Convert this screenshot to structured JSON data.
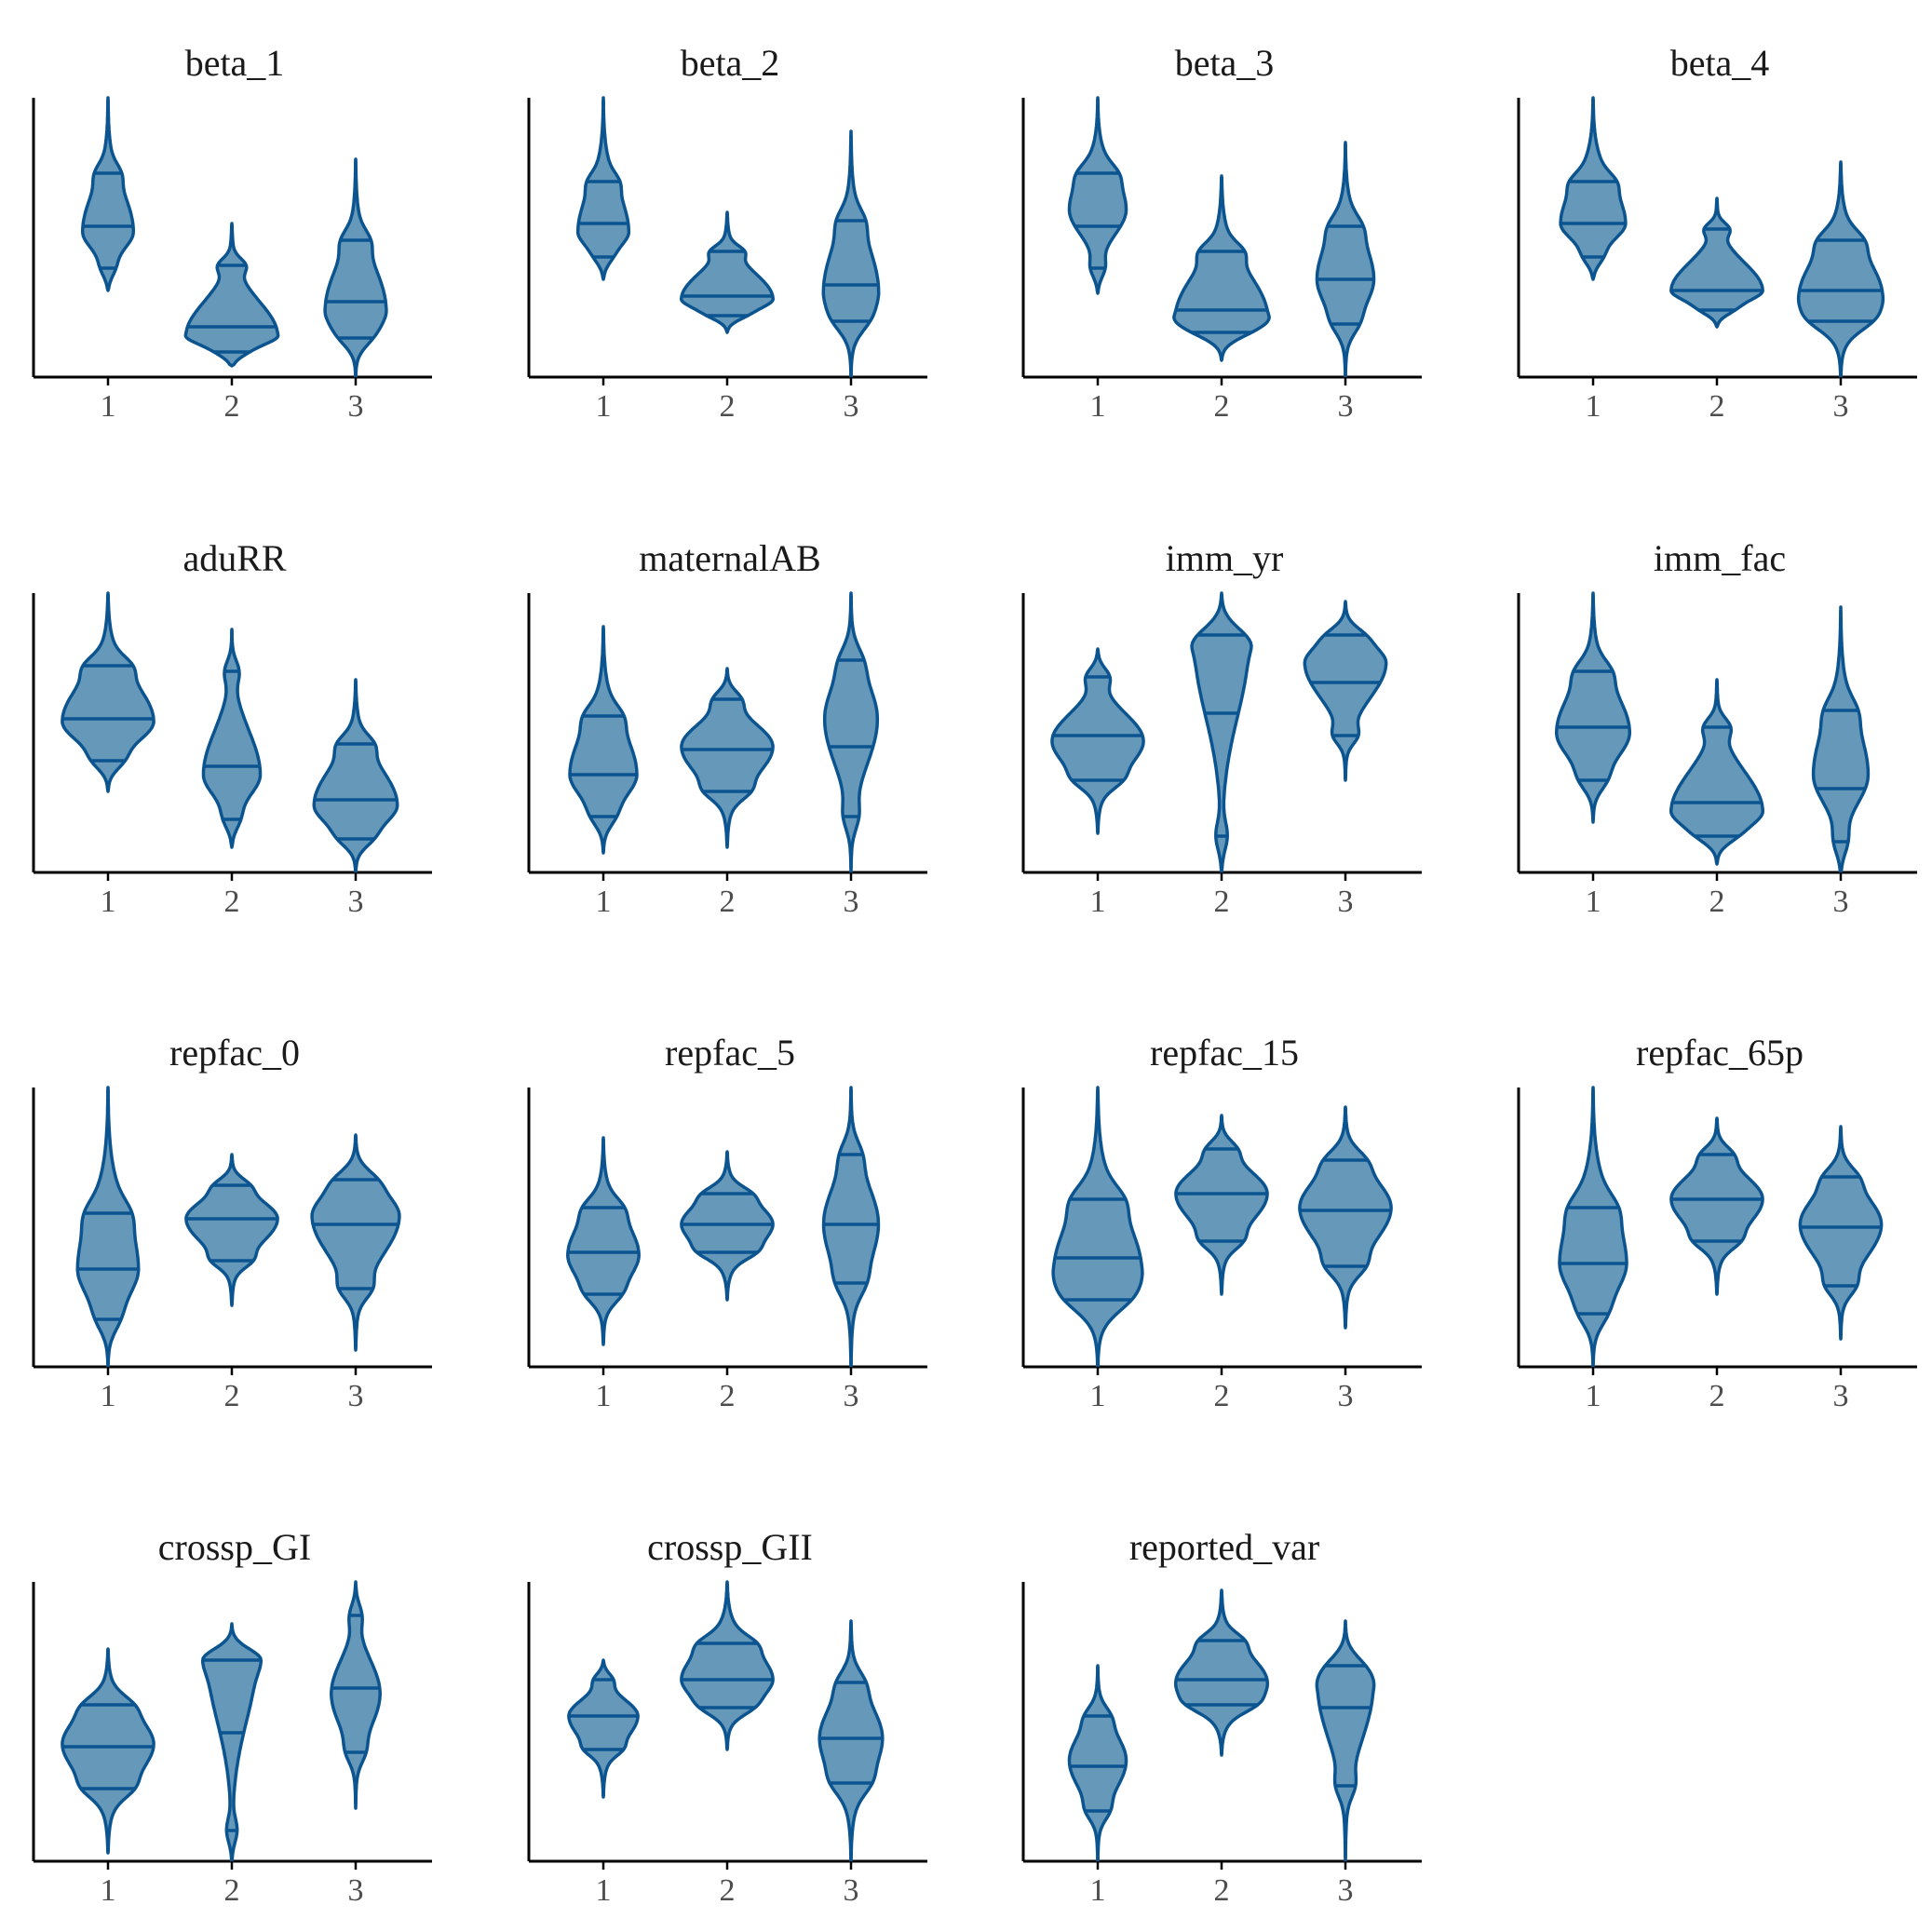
{
  "chart_data": {
    "type": "violin",
    "title": "",
    "xlabel": "",
    "ylabel": "",
    "x_categories": [
      "1",
      "2",
      "3"
    ],
    "y_ticks_shown": false,
    "grid": false,
    "legend": "none",
    "colors": {
      "fill": "#6699b9",
      "outline": "#0b5490",
      "axis": "#000000",
      "tick_text": "#4d4d4d",
      "title_text": "#1a1a1a"
    },
    "quantiles_drawn": [
      0.25,
      0.5,
      0.75
    ],
    "note_on_values": "Unlabeled y axis; all values are relative heights within each panel (0 = bottom axis, 1 = top of panel).",
    "panels": [
      {
        "title": "beta_1",
        "violins": [
          {
            "x": "1",
            "min": 0.31,
            "q1": 0.39,
            "median": 0.54,
            "q3": 0.73,
            "max": 1.0,
            "mode": 0.52,
            "max_half_width": 0.25
          },
          {
            "x": "2",
            "min": 0.04,
            "q1": 0.09,
            "median": 0.18,
            "q3": 0.4,
            "max": 0.55,
            "mode": 0.15,
            "max_half_width": 0.45
          },
          {
            "x": "3",
            "min": 0.0,
            "q1": 0.14,
            "median": 0.27,
            "q3": 0.49,
            "max": 0.78,
            "mode": 0.24,
            "max_half_width": 0.3
          }
        ]
      },
      {
        "title": "beta_2",
        "violins": [
          {
            "x": "1",
            "min": 0.35,
            "q1": 0.43,
            "median": 0.55,
            "q3": 0.7,
            "max": 1.0,
            "mode": 0.52,
            "max_half_width": 0.25
          },
          {
            "x": "2",
            "min": 0.16,
            "q1": 0.22,
            "median": 0.29,
            "q3": 0.45,
            "max": 0.59,
            "mode": 0.28,
            "max_half_width": 0.45
          },
          {
            "x": "3",
            "min": 0.0,
            "q1": 0.2,
            "median": 0.33,
            "q3": 0.56,
            "max": 0.88,
            "mode": 0.31,
            "max_half_width": 0.27
          }
        ]
      },
      {
        "title": "beta_3",
        "violins": [
          {
            "x": "1",
            "min": 0.3,
            "q1": 0.39,
            "median": 0.54,
            "q3": 0.73,
            "max": 1.0,
            "mode": 0.6,
            "max_half_width": 0.28
          },
          {
            "x": "2",
            "min": 0.06,
            "q1": 0.16,
            "median": 0.24,
            "q3": 0.45,
            "max": 0.72,
            "mode": 0.22,
            "max_half_width": 0.45
          },
          {
            "x": "3",
            "min": 0.0,
            "q1": 0.19,
            "median": 0.35,
            "q3": 0.54,
            "max": 0.84,
            "mode": 0.35,
            "max_half_width": 0.28
          }
        ]
      },
      {
        "title": "beta_4",
        "violins": [
          {
            "x": "1",
            "min": 0.35,
            "q1": 0.43,
            "median": 0.55,
            "q3": 0.7,
            "max": 1.0,
            "mode": 0.55,
            "max_half_width": 0.32
          },
          {
            "x": "2",
            "min": 0.18,
            "q1": 0.24,
            "median": 0.31,
            "q3": 0.53,
            "max": 0.64,
            "mode": 0.31,
            "max_half_width": 0.45
          },
          {
            "x": "3",
            "min": 0.0,
            "q1": 0.2,
            "median": 0.31,
            "q3": 0.49,
            "max": 0.77,
            "mode": 0.29,
            "max_half_width": 0.41
          }
        ]
      },
      {
        "title": "aduRR",
        "violins": [
          {
            "x": "1",
            "min": 0.29,
            "q1": 0.4,
            "median": 0.55,
            "q3": 0.74,
            "max": 1.0,
            "mode": 0.54,
            "max_half_width": 0.45
          },
          {
            "x": "2",
            "min": 0.09,
            "q1": 0.19,
            "median": 0.38,
            "q3": 0.72,
            "max": 0.87,
            "mode": 0.35,
            "max_half_width": 0.28
          },
          {
            "x": "3",
            "min": 0.0,
            "q1": 0.12,
            "median": 0.26,
            "q3": 0.46,
            "max": 0.69,
            "mode": 0.24,
            "max_half_width": 0.41
          }
        ]
      },
      {
        "title": "maternalAB",
        "violins": [
          {
            "x": "1",
            "min": 0.07,
            "q1": 0.2,
            "median": 0.35,
            "q3": 0.56,
            "max": 0.88,
            "mode": 0.35,
            "max_half_width": 0.33
          },
          {
            "x": "2",
            "min": 0.09,
            "q1": 0.29,
            "median": 0.44,
            "q3": 0.62,
            "max": 0.73,
            "mode": 0.45,
            "max_half_width": 0.45
          },
          {
            "x": "3",
            "min": 0.0,
            "q1": 0.2,
            "median": 0.45,
            "q3": 0.76,
            "max": 1.0,
            "mode": 0.55,
            "max_half_width": 0.26
          }
        ]
      },
      {
        "title": "imm_yr",
        "violins": [
          {
            "x": "1",
            "min": 0.14,
            "q1": 0.33,
            "median": 0.49,
            "q3": 0.7,
            "max": 0.8,
            "mode": 0.47,
            "max_half_width": 0.45
          },
          {
            "x": "2",
            "min": 0.0,
            "q1": 0.13,
            "median": 0.57,
            "q3": 0.85,
            "max": 1.0,
            "mode": 0.8,
            "max_half_width": 0.26
          },
          {
            "x": "3",
            "min": 0.33,
            "q1": 0.49,
            "median": 0.68,
            "q3": 0.85,
            "max": 0.97,
            "mode": 0.75,
            "max_half_width": 0.4
          }
        ]
      },
      {
        "title": "imm_fac",
        "violins": [
          {
            "x": "1",
            "min": 0.18,
            "q1": 0.33,
            "median": 0.52,
            "q3": 0.72,
            "max": 1.0,
            "mode": 0.5,
            "max_half_width": 0.36
          },
          {
            "x": "2",
            "min": 0.03,
            "q1": 0.13,
            "median": 0.25,
            "q3": 0.52,
            "max": 0.69,
            "mode": 0.22,
            "max_half_width": 0.45
          },
          {
            "x": "3",
            "min": 0.0,
            "q1": 0.11,
            "median": 0.3,
            "q3": 0.58,
            "max": 0.95,
            "mode": 0.35,
            "max_half_width": 0.27
          }
        ]
      },
      {
        "title": "repfac_0",
        "violins": [
          {
            "x": "1",
            "min": 0.0,
            "q1": 0.17,
            "median": 0.35,
            "q3": 0.55,
            "max": 1.0,
            "mode": 0.35,
            "max_half_width": 0.3
          },
          {
            "x": "2",
            "min": 0.22,
            "q1": 0.38,
            "median": 0.53,
            "q3": 0.65,
            "max": 0.76,
            "mode": 0.53,
            "max_half_width": 0.45
          },
          {
            "x": "3",
            "min": 0.06,
            "q1": 0.28,
            "median": 0.51,
            "q3": 0.67,
            "max": 0.83,
            "mode": 0.54,
            "max_half_width": 0.43
          }
        ]
      },
      {
        "title": "repfac_5",
        "violins": [
          {
            "x": "1",
            "min": 0.08,
            "q1": 0.26,
            "median": 0.41,
            "q3": 0.57,
            "max": 0.82,
            "mode": 0.4,
            "max_half_width": 0.35
          },
          {
            "x": "2",
            "min": 0.24,
            "q1": 0.41,
            "median": 0.51,
            "q3": 0.62,
            "max": 0.77,
            "mode": 0.51,
            "max_half_width": 0.45
          },
          {
            "x": "3",
            "min": 0.0,
            "q1": 0.3,
            "median": 0.51,
            "q3": 0.76,
            "max": 1.0,
            "mode": 0.51,
            "max_half_width": 0.27
          }
        ]
      },
      {
        "title": "repfac_15",
        "violins": [
          {
            "x": "1",
            "min": 0.0,
            "q1": 0.24,
            "median": 0.39,
            "q3": 0.6,
            "max": 1.0,
            "mode": 0.35,
            "max_half_width": 0.43
          },
          {
            "x": "2",
            "min": 0.26,
            "q1": 0.45,
            "median": 0.62,
            "q3": 0.78,
            "max": 0.9,
            "mode": 0.62,
            "max_half_width": 0.45
          },
          {
            "x": "3",
            "min": 0.14,
            "q1": 0.36,
            "median": 0.56,
            "q3": 0.74,
            "max": 0.93,
            "mode": 0.57,
            "max_half_width": 0.45
          }
        ]
      },
      {
        "title": "repfac_65p",
        "violins": [
          {
            "x": "1",
            "min": 0.0,
            "q1": 0.19,
            "median": 0.37,
            "q3": 0.57,
            "max": 1.0,
            "mode": 0.37,
            "max_half_width": 0.33
          },
          {
            "x": "2",
            "min": 0.26,
            "q1": 0.45,
            "median": 0.6,
            "q3": 0.76,
            "max": 0.89,
            "mode": 0.6,
            "max_half_width": 0.45
          },
          {
            "x": "3",
            "min": 0.1,
            "q1": 0.29,
            "median": 0.5,
            "q3": 0.68,
            "max": 0.86,
            "mode": 0.51,
            "max_half_width": 0.4
          }
        ]
      },
      {
        "title": "crossp_GI",
        "violins": [
          {
            "x": "1",
            "min": 0.03,
            "q1": 0.26,
            "median": 0.41,
            "q3": 0.56,
            "max": 0.76,
            "mode": 0.42,
            "max_half_width": 0.45
          },
          {
            "x": "2",
            "min": 0.0,
            "q1": 0.11,
            "median": 0.46,
            "q3": 0.72,
            "max": 0.85,
            "mode": 0.72,
            "max_half_width": 0.24
          },
          {
            "x": "3",
            "min": 0.19,
            "q1": 0.39,
            "median": 0.62,
            "q3": 0.88,
            "max": 1.0,
            "mode": 0.6,
            "max_half_width": 0.24
          }
        ]
      },
      {
        "title": "crossp_GII",
        "violins": [
          {
            "x": "1",
            "min": 0.23,
            "q1": 0.4,
            "median": 0.52,
            "q3": 0.65,
            "max": 0.72,
            "mode": 0.52,
            "max_half_width": 0.34
          },
          {
            "x": "2",
            "min": 0.4,
            "q1": 0.55,
            "median": 0.65,
            "q3": 0.78,
            "max": 1.0,
            "mode": 0.65,
            "max_half_width": 0.45
          },
          {
            "x": "3",
            "min": 0.0,
            "q1": 0.28,
            "median": 0.44,
            "q3": 0.64,
            "max": 0.86,
            "mode": 0.44,
            "max_half_width": 0.31
          }
        ]
      },
      {
        "title": "reported_var",
        "violins": [
          {
            "x": "1",
            "min": 0.0,
            "q1": 0.18,
            "median": 0.34,
            "q3": 0.52,
            "max": 0.7,
            "mode": 0.36,
            "max_half_width": 0.28
          },
          {
            "x": "2",
            "min": 0.38,
            "q1": 0.56,
            "median": 0.65,
            "q3": 0.79,
            "max": 0.97,
            "mode": 0.64,
            "max_half_width": 0.45
          },
          {
            "x": "3",
            "min": 0.0,
            "q1": 0.27,
            "median": 0.55,
            "q3": 0.7,
            "max": 0.86,
            "mode": 0.62,
            "max_half_width": 0.27
          }
        ]
      }
    ]
  }
}
